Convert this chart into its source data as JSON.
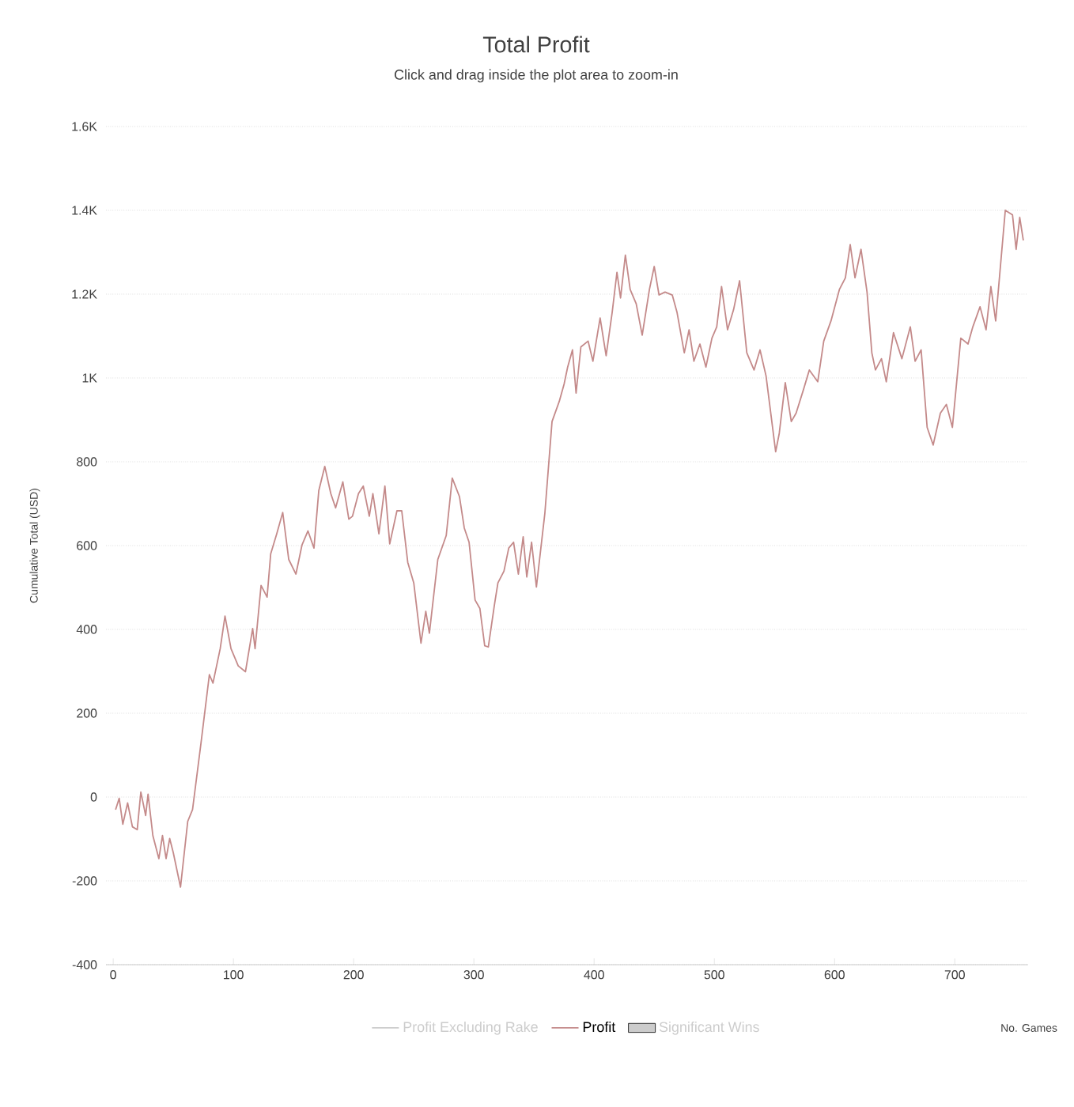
{
  "chart_data": {
    "type": "line",
    "title": "Total Profit",
    "subtitle": "Click and drag inside the plot area to zoom-in",
    "xlabel": "No. Games",
    "ylabel": "Cumulative Total (USD)",
    "xlim": [
      -6,
      761
    ],
    "xticks": [
      0,
      100,
      200,
      300,
      400,
      500,
      600,
      700
    ],
    "ylim": [
      -400,
      1600
    ],
    "yticks": [
      -400,
      -200,
      0,
      200,
      400,
      600,
      800,
      {
        "value": 1000,
        "label": "1K"
      },
      {
        "value": 1200,
        "label": "1.2K"
      },
      {
        "value": 1400,
        "label": "1.4K"
      },
      {
        "value": 1600,
        "label": "1.6K"
      }
    ],
    "grid": "y",
    "legend": "bottom",
    "marker": "none",
    "line_style": "solid",
    "series": [
      {
        "name": "Profit Excluding Rake",
        "type": "line",
        "color": "#cccccc"
      },
      {
        "name": "Profit",
        "color": "#c48a8a",
        "x": [
          2,
          5,
          8,
          12,
          16,
          20,
          23,
          27,
          29,
          33,
          38,
          41,
          44,
          47,
          50,
          56,
          62,
          66,
          73,
          80,
          83,
          89,
          93,
          98,
          104,
          110,
          116,
          118,
          123,
          128,
          131,
          136,
          141,
          146,
          152,
          157,
          162,
          167,
          171,
          176,
          181,
          185,
          191,
          196,
          199,
          204,
          208,
          213,
          216,
          221,
          226,
          230,
          236,
          240,
          245,
          250,
          256,
          260,
          263,
          270,
          277,
          282,
          288,
          292,
          296,
          301,
          305,
          309,
          312,
          317,
          320,
          325,
          329,
          333,
          337,
          341,
          344,
          348,
          352,
          359,
          365,
          371,
          375,
          378,
          382,
          385,
          389,
          395,
          399,
          405,
          410,
          415,
          419,
          422,
          426,
          430,
          435,
          440,
          446,
          450,
          454,
          459,
          465,
          469,
          475,
          479,
          483,
          488,
          493,
          498,
          502,
          506,
          511,
          516,
          521,
          527,
          533,
          538,
          543,
          551,
          554,
          559,
          564,
          568,
          574,
          579,
          586,
          591,
          597,
          604,
          609,
          613,
          617,
          622,
          627,
          631,
          634,
          639,
          643,
          649,
          656,
          663,
          667,
          672,
          677,
          682,
          688,
          693,
          698,
          705,
          711,
          715,
          721,
          726,
          730,
          734,
          742,
          748,
          751,
          754,
          757
        ],
        "values": [
          -30,
          -3,
          -65,
          -14,
          -71,
          -78,
          12,
          -44,
          7,
          -92,
          -147,
          -92,
          -147,
          -99,
          -133,
          -215,
          -58,
          -30,
          128,
          292,
          272,
          354,
          432,
          354,
          313,
          299,
          402,
          354,
          505,
          477,
          580,
          628,
          679,
          567,
          532,
          601,
          635,
          594,
          731,
          789,
          724,
          690,
          752,
          663,
          670,
          724,
          742,
          670,
          724,
          628,
          742,
          604,
          683,
          683,
          560,
          511,
          367,
          443,
          391,
          567,
          624,
          761,
          717,
          642,
          608,
          470,
          450,
          361,
          358,
          457,
          511,
          539,
          594,
          608,
          532,
          621,
          525,
          608,
          501,
          676,
          896,
          944,
          985,
          1026,
          1067,
          964,
          1074,
          1088,
          1040,
          1143,
          1053,
          1156,
          1252,
          1191,
          1293,
          1211,
          1177,
          1102,
          1211,
          1266,
          1198,
          1205,
          1198,
          1156,
          1060,
          1115,
          1040,
          1081,
          1026,
          1095,
          1122,
          1218,
          1115,
          1163,
          1232,
          1060,
          1019,
          1067,
          1005,
          824,
          868,
          989,
          896,
          916,
          971,
          1019,
          991,
          1088,
          1136,
          1211,
          1239,
          1318,
          1239,
          1307,
          1205,
          1060,
          1019,
          1046,
          991,
          1108,
          1046,
          1122,
          1040,
          1067,
          882,
          840,
          916,
          937,
          882,
          1095,
          1081,
          1122,
          1170,
          1115,
          1218,
          1136,
          1400,
          1389,
          1307,
          1383,
          1328
        ]
      },
      {
        "name": "Significant Wins",
        "type": "area",
        "color": "#cccccc"
      }
    ]
  }
}
